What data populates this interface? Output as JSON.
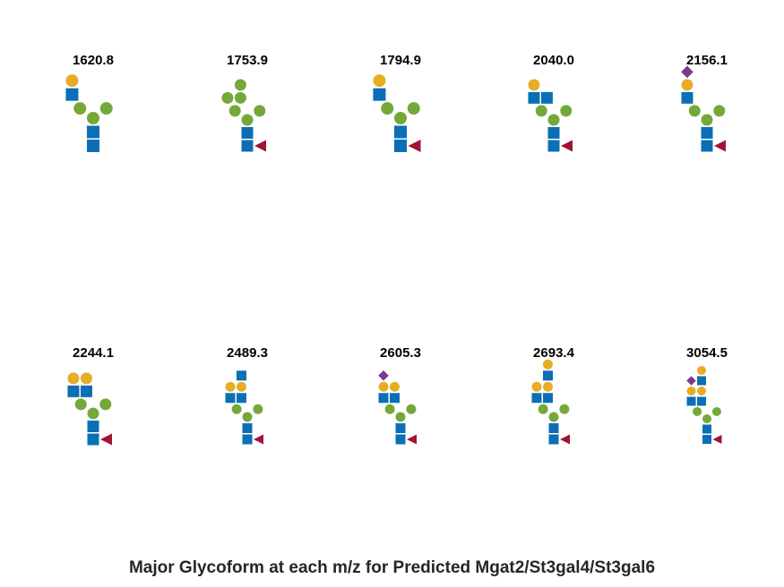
{
  "caption": "Major Glycoform at each m/z for Predicted Mgat2/St3gal4/St3gal6",
  "colors": {
    "glcnac": "#0a6fb6",
    "mannose": "#75a83a",
    "galactose": "#e8ac25",
    "neuac": "#7a3b8c",
    "fucose": "#a01436",
    "label": "#000000",
    "caption": "#262626"
  },
  "legend_symbols": {
    "square": "GlcNAc",
    "circle-green": "Mannose",
    "circle-yellow": "Galactose",
    "diamond": "NeuAc",
    "triangle": "Fucose"
  },
  "glycans": [
    {
      "mz": "1620.8",
      "fucose": false,
      "arm_a": [
        "glcnac",
        "galactose"
      ],
      "arm_b": []
    },
    {
      "mz": "1753.9",
      "fucose": true,
      "arm_a": [
        "mannose"
      ],
      "arm_b": [
        "mannose",
        "mannose"
      ]
    },
    {
      "mz": "1794.9",
      "fucose": true,
      "arm_a": [
        "glcnac",
        "galactose"
      ],
      "arm_b": []
    },
    {
      "mz": "2040.0",
      "fucose": true,
      "arm_a": [
        "glcnac",
        "galactose"
      ],
      "arm_b": [
        "glcnac"
      ]
    },
    {
      "mz": "2156.1",
      "fucose": true,
      "arm_a": [
        "glcnac",
        "galactose",
        "neuac"
      ],
      "arm_b": []
    },
    {
      "mz": "2244.1",
      "fucose": true,
      "arm_a": [
        "glcnac",
        "galactose"
      ],
      "arm_b": [
        "glcnac",
        "galactose"
      ]
    },
    {
      "mz": "2489.3",
      "fucose": true,
      "arm_a": [
        "glcnac",
        "galactose"
      ],
      "arm_b": [
        "glcnac",
        "galactose",
        "glcnac"
      ]
    },
    {
      "mz": "2605.3",
      "fucose": true,
      "arm_a": [
        "glcnac",
        "galactose",
        "neuac"
      ],
      "arm_b": [
        "glcnac",
        "galactose"
      ]
    },
    {
      "mz": "2693.4",
      "fucose": true,
      "arm_a": [
        "glcnac",
        "galactose"
      ],
      "arm_b": [
        "glcnac",
        "galactose",
        "glcnac",
        "galactose"
      ]
    },
    {
      "mz": "3054.5",
      "fucose": true,
      "arm_a": [
        "glcnac",
        "galactose",
        "neuac"
      ],
      "arm_b": [
        "glcnac",
        "galactose",
        "glcnac",
        "galactose"
      ]
    }
  ]
}
